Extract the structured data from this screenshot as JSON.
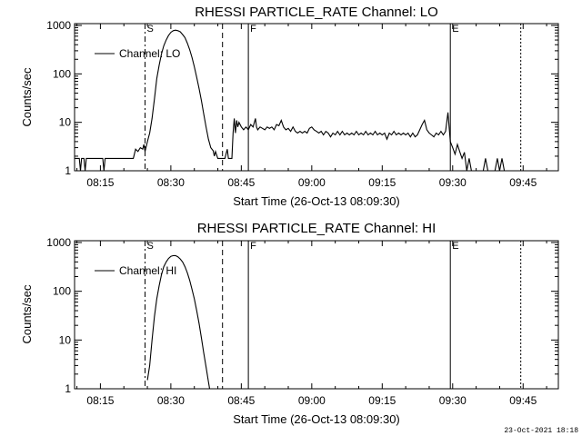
{
  "footer": {
    "timestamp": "23-Oct-2021 18:18"
  },
  "chart_data": [
    {
      "type": "line",
      "title": "RHESSI PARTICLE_RATE Channel: LO",
      "xlabel": "Start Time (26-Oct-13 08:09:30)",
      "ylabel": "Counts/sec",
      "yscale": "log",
      "ylim": [
        1,
        1000
      ],
      "xlim": [
        "08:09:30",
        "09:52:30"
      ],
      "x_ticks": [
        "08:15",
        "08:30",
        "08:45",
        "09:00",
        "09:15",
        "09:30",
        "09:45"
      ],
      "y_ticks": [
        "1",
        "10",
        "100",
        "1000"
      ],
      "legend": {
        "entries": [
          "Channel: LO"
        ],
        "placement": "top-left"
      },
      "markers": [
        {
          "time": "08:24:30",
          "style": "dash-dot",
          "label": "S"
        },
        {
          "time": "08:41:00",
          "style": "dashed",
          "label": ""
        },
        {
          "time": "08:46:30",
          "style": "solid",
          "label": "F"
        },
        {
          "time": "09:29:30",
          "style": "solid",
          "label": "E"
        },
        {
          "time": "09:44:30",
          "style": "dotted",
          "label": ""
        }
      ],
      "series": [
        {
          "name": "Channel: LO",
          "points": [
            [
              "08:09:30",
              1.8
            ],
            [
              "08:10:30",
              1.8
            ],
            [
              "08:10:45",
              1
            ],
            [
              "08:11:00",
              1.8
            ],
            [
              "08:11:30",
              1.8
            ],
            [
              "08:11:45",
              1
            ],
            [
              "08:12:00",
              1.8
            ],
            [
              "08:14:30",
              1.8
            ],
            [
              "08:15:30",
              1.8
            ],
            [
              "08:15:45",
              1
            ],
            [
              "08:16:00",
              1.8
            ],
            [
              "08:22:00",
              1.8
            ],
            [
              "08:22:30",
              2.8
            ],
            [
              "08:23:00",
              2.5
            ],
            [
              "08:23:30",
              3.0
            ],
            [
              "08:24:00",
              2.8
            ],
            [
              "08:24:15",
              3.5
            ],
            [
              "08:24:30",
              2.5
            ],
            [
              "08:25:00",
              4
            ],
            [
              "08:25:30",
              6
            ],
            [
              "08:26:00",
              12
            ],
            [
              "08:26:30",
              30
            ],
            [
              "08:27:00",
              80
            ],
            [
              "08:27:30",
              150
            ],
            [
              "08:28:00",
              260
            ],
            [
              "08:28:30",
              380
            ],
            [
              "08:29:00",
              500
            ],
            [
              "08:29:30",
              620
            ],
            [
              "08:30:00",
              720
            ],
            [
              "08:30:30",
              780
            ],
            [
              "08:31:00",
              800
            ],
            [
              "08:31:30",
              780
            ],
            [
              "08:32:00",
              740
            ],
            [
              "08:32:30",
              650
            ],
            [
              "08:33:00",
              560
            ],
            [
              "08:33:30",
              430
            ],
            [
              "08:34:00",
              320
            ],
            [
              "08:34:30",
              220
            ],
            [
              "08:35:00",
              140
            ],
            [
              "08:35:30",
              85
            ],
            [
              "08:36:00",
              50
            ],
            [
              "08:36:30",
              28
            ],
            [
              "08:37:00",
              15
            ],
            [
              "08:37:30",
              8
            ],
            [
              "08:38:00",
              4.5
            ],
            [
              "08:38:30",
              3.0
            ],
            [
              "08:39:00",
              2.6
            ],
            [
              "08:39:15",
              2.0
            ],
            [
              "08:39:30",
              2.5
            ],
            [
              "08:40:00",
              1.8
            ],
            [
              "08:41:30",
              1.8
            ],
            [
              "08:42:00",
              2.8
            ],
            [
              "08:42:15",
              1.8
            ],
            [
              "08:43:00",
              1.8
            ],
            [
              "08:43:15",
              6
            ],
            [
              "08:43:30",
              12
            ],
            [
              "08:43:45",
              6
            ],
            [
              "08:44:00",
              11
            ],
            [
              "08:44:15",
              8
            ],
            [
              "08:44:30",
              10
            ],
            [
              "08:45:00",
              8
            ],
            [
              "08:45:30",
              7
            ],
            [
              "08:46:00",
              8
            ],
            [
              "08:46:30",
              7
            ],
            [
              "08:47:00",
              9
            ],
            [
              "08:47:30",
              8
            ],
            [
              "08:48:00",
              12
            ],
            [
              "08:48:15",
              8
            ],
            [
              "08:48:30",
              7
            ],
            [
              "08:49:00",
              8
            ],
            [
              "08:49:30",
              7.5
            ],
            [
              "08:50:00",
              7
            ],
            [
              "08:50:30",
              8
            ],
            [
              "08:51:00",
              7.5
            ],
            [
              "08:51:30",
              8
            ],
            [
              "08:52:00",
              7
            ],
            [
              "08:52:30",
              9
            ],
            [
              "08:53:00",
              8.5
            ],
            [
              "08:53:30",
              11
            ],
            [
              "08:54:00",
              8
            ],
            [
              "08:54:30",
              7
            ],
            [
              "08:55:00",
              7.5
            ],
            [
              "08:55:30",
              6.5
            ],
            [
              "08:56:00",
              8
            ],
            [
              "08:56:30",
              6.5
            ],
            [
              "08:57:00",
              6
            ],
            [
              "08:57:30",
              6.5
            ],
            [
              "08:58:00",
              6
            ],
            [
              "08:58:30",
              6.5
            ],
            [
              "08:59:00",
              6
            ],
            [
              "08:59:30",
              7.5
            ],
            [
              "09:00:00",
              8
            ],
            [
              "09:00:30",
              7
            ],
            [
              "09:01:00",
              6.5
            ],
            [
              "09:01:30",
              6
            ],
            [
              "09:02:00",
              6.5
            ],
            [
              "09:02:30",
              5.5
            ],
            [
              "09:03:00",
              6.5
            ],
            [
              "09:03:30",
              6
            ],
            [
              "09:04:00",
              5
            ],
            [
              "09:04:30",
              6
            ],
            [
              "09:05:00",
              5.5
            ],
            [
              "09:05:30",
              6.5
            ],
            [
              "09:06:00",
              5.5
            ],
            [
              "09:06:30",
              6.5
            ],
            [
              "09:07:00",
              5.5
            ],
            [
              "09:07:30",
              6
            ],
            [
              "09:08:00",
              5.5
            ],
            [
              "09:08:30",
              6
            ],
            [
              "09:09:00",
              5.5
            ],
            [
              "09:09:30",
              6.5
            ],
            [
              "09:10:00",
              5.5
            ],
            [
              "09:10:30",
              6
            ],
            [
              "09:11:00",
              5.5
            ],
            [
              "09:11:30",
              6.5
            ],
            [
              "09:12:00",
              5.5
            ],
            [
              "09:12:30",
              6
            ],
            [
              "09:13:00",
              5.5
            ],
            [
              "09:13:30",
              6.5
            ],
            [
              "09:14:00",
              5.5
            ],
            [
              "09:14:30",
              6
            ],
            [
              "09:15:00",
              5.5
            ],
            [
              "09:15:30",
              6
            ],
            [
              "09:16:00",
              4.5
            ],
            [
              "09:16:30",
              6
            ],
            [
              "09:17:00",
              5.5
            ],
            [
              "09:17:30",
              6.5
            ],
            [
              "09:18:00",
              5.5
            ],
            [
              "09:18:30",
              6
            ],
            [
              "09:19:00",
              5.5
            ],
            [
              "09:19:30",
              6
            ],
            [
              "09:20:00",
              5.5
            ],
            [
              "09:20:30",
              6
            ],
            [
              "09:21:00",
              5
            ],
            [
              "09:21:30",
              6
            ],
            [
              "09:22:00",
              5
            ],
            [
              "09:22:30",
              5.5
            ],
            [
              "09:23:00",
              7
            ],
            [
              "09:23:30",
              9
            ],
            [
              "09:24:00",
              11
            ],
            [
              "09:24:30",
              7
            ],
            [
              "09:25:00",
              6
            ],
            [
              "09:25:30",
              5.5
            ],
            [
              "09:26:00",
              5
            ],
            [
              "09:26:30",
              6
            ],
            [
              "09:27:00",
              5.5
            ],
            [
              "09:27:30",
              6.5
            ],
            [
              "09:28:00",
              5.5
            ],
            [
              "09:28:30",
              6.5
            ],
            [
              "09:29:00",
              16
            ],
            [
              "09:29:15",
              8
            ],
            [
              "09:29:30",
              4
            ],
            [
              "09:30:00",
              3
            ],
            [
              "09:30:30",
              2.2
            ],
            [
              "09:31:00",
              3.5
            ],
            [
              "09:31:30",
              2.5
            ],
            [
              "09:32:00",
              1.8
            ],
            [
              "09:32:30",
              2.4
            ],
            [
              "09:33:00",
              1.0
            ],
            [
              "09:33:30",
              1.8
            ],
            [
              "09:34:00",
              1.0
            ],
            [
              "09:36:30",
              1.0
            ],
            [
              "09:37:00",
              1.8
            ],
            [
              "09:37:30",
              1.0
            ],
            [
              "09:39:00",
              1.0
            ],
            [
              "09:39:30",
              1.8
            ],
            [
              "09:40:00",
              1.0
            ],
            [
              "09:40:30",
              1.8
            ],
            [
              "09:41:00",
              1.0
            ]
          ]
        }
      ]
    },
    {
      "type": "line",
      "title": "RHESSI PARTICLE_RATE Channel: HI",
      "xlabel": "Start Time (26-Oct-13 08:09:30)",
      "ylabel": "Counts/sec",
      "yscale": "log",
      "ylim": [
        1,
        1000
      ],
      "xlim": [
        "08:09:30",
        "09:52:30"
      ],
      "x_ticks": [
        "08:15",
        "08:30",
        "08:45",
        "09:00",
        "09:15",
        "09:30",
        "09:45"
      ],
      "y_ticks": [
        "1",
        "10",
        "100",
        "1000"
      ],
      "legend": {
        "entries": [
          "Channel: HI"
        ],
        "placement": "top-left"
      },
      "markers": [
        {
          "time": "08:24:30",
          "style": "dash-dot",
          "label": "S"
        },
        {
          "time": "08:41:00",
          "style": "dashed",
          "label": ""
        },
        {
          "time": "08:46:30",
          "style": "solid",
          "label": "F"
        },
        {
          "time": "09:29:30",
          "style": "solid",
          "label": "E"
        },
        {
          "time": "09:44:30",
          "style": "dotted",
          "label": ""
        }
      ],
      "series": [
        {
          "name": "Channel: HI",
          "points": [
            [
              "08:25:00",
              1.5
            ],
            [
              "08:25:30",
              3
            ],
            [
              "08:26:00",
              10
            ],
            [
              "08:26:30",
              30
            ],
            [
              "08:27:00",
              70
            ],
            [
              "08:27:30",
              130
            ],
            [
              "08:28:00",
              220
            ],
            [
              "08:28:30",
              320
            ],
            [
              "08:29:00",
              400
            ],
            [
              "08:29:30",
              470
            ],
            [
              "08:30:00",
              520
            ],
            [
              "08:30:30",
              540
            ],
            [
              "08:31:00",
              540
            ],
            [
              "08:31:30",
              510
            ],
            [
              "08:32:00",
              460
            ],
            [
              "08:32:30",
              400
            ],
            [
              "08:33:00",
              320
            ],
            [
              "08:33:30",
              240
            ],
            [
              "08:34:00",
              170
            ],
            [
              "08:34:30",
              110
            ],
            [
              "08:35:00",
              70
            ],
            [
              "08:35:30",
              40
            ],
            [
              "08:36:00",
              22
            ],
            [
              "08:36:30",
              11
            ],
            [
              "08:37:00",
              5.5
            ],
            [
              "08:37:30",
              2.8
            ],
            [
              "08:38:00",
              1.4
            ],
            [
              "08:38:15",
              1.0
            ]
          ]
        }
      ]
    }
  ]
}
